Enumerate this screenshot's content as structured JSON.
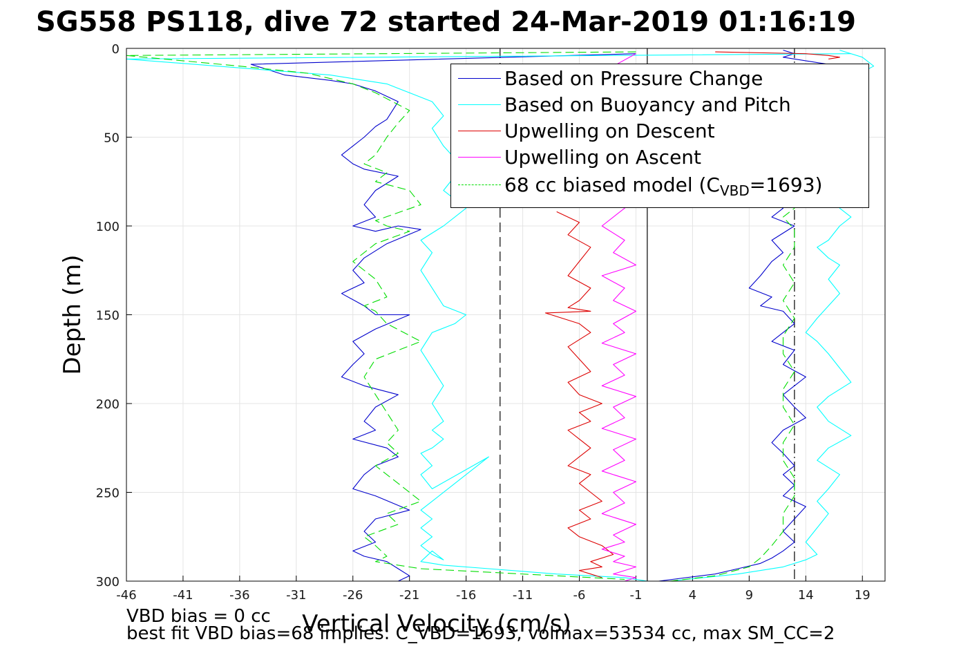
{
  "title": "SG558 PS118, dive 72 started 24-Mar-2019 01:16:19",
  "notes": {
    "line1": "VBD bias = 0 cc",
    "line2": "best fit VBD bias=68 implies: C_VBD=1693, volmax=53534 cc, max SM_CC=2"
  },
  "legend": {
    "items": [
      {
        "label": "Based on Pressure Change",
        "color": "#0000cc",
        "dashed": false
      },
      {
        "label": "Based on Buoyancy and Pitch",
        "color": "#00ffff",
        "dashed": false
      },
      {
        "label": "Upwelling on Descent",
        "color": "#dd0000",
        "dashed": false
      },
      {
        "label": "Upwelling on Ascent",
        "color": "#ff00ff",
        "dashed": false
      },
      {
        "label_pre": "68 cc biased model (C",
        "label_sub": "VBD",
        "label_post": "=1693)",
        "color": "#00dd00",
        "dashed": true
      }
    ]
  },
  "chart_data": {
    "type": "line",
    "xlabel": "Vertical Velocity (cm/s)",
    "ylabel": "Depth (m)",
    "xlim": [
      -46,
      21
    ],
    "ylim": [
      0,
      300
    ],
    "y_reversed": true,
    "grid": true,
    "legend_position": "top-right",
    "xticks": [
      -46,
      -41,
      -36,
      -31,
      -26,
      -21,
      -16,
      -11,
      -6,
      -1,
      4,
      9,
      14,
      19
    ],
    "yticks": [
      0,
      50,
      100,
      150,
      200,
      250,
      300
    ],
    "reference_lines": [
      {
        "x": -13,
        "style": "dashed",
        "color": "#000000"
      },
      {
        "x": 0,
        "style": "solid",
        "color": "#000000"
      },
      {
        "x": 13,
        "style": "dashdot",
        "color": "#000000"
      }
    ],
    "series": [
      {
        "name": "Based on Pressure Change",
        "color": "#0000cc",
        "dashed": false,
        "branches": [
          {
            "x": [
              -1,
              -35,
              -32,
              -28,
              -26,
              -24,
              -22,
              -23,
              -24,
              -25,
              -26,
              -27,
              -26,
              -25,
              -22,
              -24,
              -25,
              -24,
              -26,
              -24,
              -22,
              -20,
              -23,
              -25,
              -26,
              -25,
              -27,
              -25,
              -24,
              -21,
              -24,
              -26,
              -25,
              -26,
              -27,
              -25,
              -22,
              -24,
              -25,
              -24,
              -26,
              -23,
              -22,
              -24,
              -25,
              -26,
              -24,
              -21,
              -24,
              -25,
              -24,
              -26,
              -25,
              -23,
              -22,
              -21,
              -22
            ],
            "y": [
              3,
              9,
              15,
              18,
              20,
              24,
              30,
              40,
              44,
              50,
              55,
              60,
              65,
              68,
              72,
              80,
              88,
              95,
              100,
              103,
              100,
              102,
              110,
              118,
              125,
              132,
              138,
              145,
              150,
              150,
              158,
              165,
              172,
              178,
              185,
              190,
              195,
              202,
              210,
              215,
              220,
              225,
              230,
              235,
              240,
              248,
              252,
              260,
              265,
              272,
              278,
              283,
              286,
              289,
              293,
              297,
              300
            ]
          },
          {
            "x": [
              1,
              6,
              8,
              10,
              11,
              12,
              13,
              12,
              13,
              14,
              12,
              13,
              12,
              13,
              12,
              11,
              12,
              14,
              13,
              12,
              13,
              14,
              12,
              13,
              11,
              12,
              13,
              12,
              10,
              11,
              9,
              10,
              11,
              12,
              11,
              13,
              11,
              12,
              10,
              11,
              13,
              14,
              17,
              18,
              17,
              12,
              13,
              12
            ],
            "y": [
              300,
              296,
              293,
              290,
              287,
              283,
              278,
              272,
              265,
              258,
              252,
              246,
              240,
              235,
              228,
              222,
              215,
              208,
              202,
              195,
              190,
              185,
              178,
              170,
              165,
              160,
              155,
              148,
              145,
              140,
              135,
              128,
              120,
              115,
              108,
              100,
              95,
              90,
              85,
              80,
              70,
              55,
              40,
              25,
              10,
              5,
              3,
              1
            ]
          }
        ]
      },
      {
        "name": "Based on Buoyancy and Pitch",
        "color": "#00ffff",
        "dashed": false,
        "branches": [
          {
            "x": [
              18,
              -46,
              -40,
              -34,
              -28,
              -23,
              -21,
              -19,
              -18,
              -19,
              -18,
              -17,
              -16,
              -17,
              -18,
              -16,
              -18,
              -20,
              -19,
              -20,
              -19,
              -18,
              -16,
              -17,
              -19,
              -20,
              -19,
              -18,
              -19,
              -18,
              -19,
              -18,
              -19,
              -20,
              -19,
              -20,
              -19,
              -14,
              -19,
              -20,
              -19,
              -20,
              -19,
              -20,
              -19,
              -18,
              -19,
              -20,
              -18,
              -14,
              -8,
              -2,
              0
            ],
            "y": [
              3,
              6,
              9,
              12,
              15,
              20,
              25,
              30,
              38,
              45,
              55,
              62,
              68,
              72,
              80,
              90,
              100,
              108,
              115,
              125,
              135,
              145,
              150,
              155,
              160,
              170,
              180,
              190,
              200,
              210,
              215,
              220,
              225,
              228,
              235,
              240,
              248,
              230,
              255,
              260,
              265,
              270,
              275,
              280,
              285,
              288,
              283,
              289,
              291,
              293,
              296,
              298,
              300
            ]
          },
          {
            "x": [
              2,
              8,
              12,
              14,
              15,
              14,
              15,
              16,
              15,
              16,
              17,
              15,
              16,
              18,
              16,
              15,
              16,
              18,
              17,
              16,
              15,
              14,
              15,
              16,
              17,
              16,
              17,
              16,
              15,
              16,
              17,
              18,
              17,
              16,
              18,
              17,
              19,
              18,
              17,
              20,
              19,
              17
            ],
            "y": [
              300,
              296,
              292,
              288,
              285,
              278,
              270,
              262,
              255,
              248,
              240,
              232,
              225,
              218,
              210,
              202,
              196,
              188,
              180,
              172,
              165,
              160,
              152,
              145,
              138,
              130,
              122,
              118,
              112,
              108,
              100,
              95,
              90,
              70,
              60,
              50,
              40,
              30,
              20,
              10,
              5,
              1
            ]
          }
        ]
      },
      {
        "name": "Upwelling on Descent",
        "color": "#dd0000",
        "dashed": false,
        "branches": [
          {
            "x": [
              -8,
              -6,
              -7,
              -5,
              -6,
              -7,
              -5,
              -6,
              -7,
              -5,
              -9,
              -6,
              -5,
              -7,
              -6,
              -5,
              -7,
              -6,
              -4,
              -6,
              -5,
              -7,
              -6,
              -5,
              -6,
              -7,
              -5,
              -6,
              -5,
              -4,
              -6,
              -5,
              -7,
              -6,
              -4,
              -3,
              -5,
              -4,
              -6,
              -5,
              -4
            ],
            "y": [
              92,
              98,
              105,
              112,
              120,
              128,
              135,
              142,
              146,
              148,
              149,
              155,
              160,
              168,
              175,
              182,
              188,
              195,
              200,
              205,
              210,
              215,
              220,
              225,
              230,
              235,
              240,
              245,
              250,
              255,
              260,
              265,
              270,
              275,
              280,
              285,
              289,
              292,
              294,
              296,
              298
            ]
          },
          {
            "x": [
              6,
              14,
              16,
              17,
              16
            ],
            "y": [
              2,
              3,
              4,
              5,
              6
            ]
          }
        ]
      },
      {
        "name": "Upwelling on Ascent",
        "color": "#ff00ff",
        "dashed": false,
        "branches": [
          {
            "x": [
              -1,
              -3,
              -2,
              -4,
              -2,
              -3,
              -1,
              -4,
              -2,
              -3,
              -1,
              -4,
              -2,
              -3,
              -1,
              -3,
              -2,
              -4,
              -1,
              -3,
              -2,
              -4,
              -1,
              -3,
              -2,
              -4,
              -1,
              -3,
              -2,
              -4,
              -1,
              -3,
              -2,
              -4,
              -1,
              -3,
              -2,
              -4,
              -2,
              -3,
              -1,
              -2,
              -3,
              -1,
              -2
            ],
            "y": [
              3,
              10,
              25,
              40,
              55,
              70,
              85,
              100,
              108,
              115,
              122,
              128,
              135,
              142,
              148,
              155,
              160,
              166,
              172,
              178,
              184,
              190,
              196,
              202,
              208,
              214,
              220,
              226,
              232,
              238,
              244,
              250,
              256,
              262,
              268,
              274,
              278,
              282,
              286,
              289,
              292,
              294,
              296,
              298,
              300
            ]
          }
        ]
      },
      {
        "name": "68 cc biased model (CVBD=1693)",
        "color": "#00dd00",
        "dashed": true,
        "branches": [
          {
            "x": [
              -1,
              -46,
              -36,
              -30,
              -26,
              -24,
              -21,
              -22,
              -23,
              -24,
              -25,
              -23,
              -24,
              -21,
              -20,
              -24,
              -23,
              -21,
              -24,
              -26,
              -24,
              -23,
              -25,
              -24,
              -23,
              -20,
              -24,
              -25,
              -24,
              -23,
              -22,
              -23,
              -22,
              -24,
              -22,
              -20,
              -23,
              -22,
              -25,
              -24,
              -23,
              -24,
              -22,
              -20,
              -14,
              -8,
              -2
            ],
            "y": [
              2,
              4,
              10,
              14,
              20,
              25,
              35,
              42,
              50,
              60,
              65,
              70,
              75,
              80,
              88,
              97,
              100,
              103,
              110,
              120,
              130,
              140,
              145,
              148,
              155,
              165,
              175,
              185,
              195,
              205,
              215,
              222,
              228,
              235,
              245,
              255,
              262,
              268,
              275,
              280,
              286,
              289,
              291,
              293,
              295,
              297,
              299
            ]
          },
          {
            "x": [
              2,
              6,
              9,
              10,
              11,
              12,
              12,
              13,
              13,
              12,
              12,
              13,
              12,
              12,
              13,
              12,
              12,
              13,
              12,
              13,
              12,
              13,
              13,
              12,
              13,
              13
            ],
            "y": [
              300,
              297,
              292,
              287,
              280,
              272,
              262,
              252,
              242,
              232,
              222,
              212,
              202,
              192,
              182,
              172,
              162,
              152,
              142,
              132,
              122,
              112,
              102,
              95,
              90,
              88
            ]
          }
        ]
      }
    ]
  }
}
